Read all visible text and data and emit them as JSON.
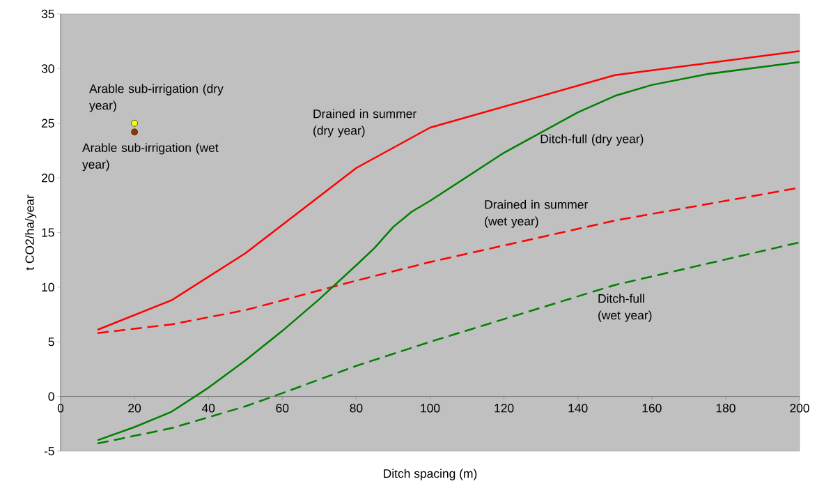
{
  "chart_data": {
    "type": "line",
    "xlabel": "Ditch spacing (m)",
    "ylabel": "t CO2/ha/year",
    "xlim": [
      0,
      200
    ],
    "ylim": [
      -5,
      35
    ],
    "xticks": [
      0,
      20,
      40,
      60,
      80,
      100,
      120,
      140,
      160,
      180,
      200
    ],
    "yticks": [
      -5,
      0,
      5,
      10,
      15,
      20,
      25,
      30,
      35
    ],
    "series": [
      {
        "name": "Drained in summer (dry year)",
        "line_style": "solid",
        "color": "#ff0000",
        "x": [
          10,
          30,
          50,
          80,
          100,
          150,
          200
        ],
        "values": [
          6.1,
          8.8,
          13.1,
          20.9,
          24.6,
          29.4,
          31.6
        ]
      },
      {
        "name": "Drained in summer (wet year)",
        "line_style": "dashed",
        "color": "#ff0000",
        "x": [
          10,
          30,
          50,
          80,
          100,
          150,
          200
        ],
        "values": [
          5.8,
          6.6,
          7.9,
          10.6,
          12.3,
          16.1,
          19.1
        ]
      },
      {
        "name": "Ditch-full (dry year)",
        "line_style": "solid",
        "color": "#008000",
        "x": [
          10,
          20,
          30,
          40,
          50,
          60,
          70,
          80,
          85,
          90,
          95,
          100,
          120,
          140,
          150,
          160,
          175,
          200
        ],
        "values": [
          -4.0,
          -2.8,
          -1.4,
          0.8,
          3.3,
          6.0,
          8.9,
          12.0,
          13.6,
          15.5,
          16.9,
          17.9,
          22.3,
          26.0,
          27.5,
          28.5,
          29.5,
          30.6
        ]
      },
      {
        "name": "Ditch-full (wet year)",
        "line_style": "dashed",
        "color": "#008000",
        "x": [
          10,
          30,
          50,
          60,
          80,
          100,
          150,
          200
        ],
        "values": [
          -4.3,
          -2.9,
          -0.9,
          0.3,
          2.8,
          5.0,
          10.2,
          14.1
        ]
      },
      {
        "name": "Arable sub-irrigation (dry year)",
        "type": "scatter",
        "marker": "circle",
        "color": "#ffff00",
        "x": [
          20
        ],
        "values": [
          25.0
        ]
      },
      {
        "name": "Arable sub-irrigation (wet year)",
        "type": "scatter",
        "marker": "circle",
        "color": "#993300",
        "x": [
          20
        ],
        "values": [
          24.2
        ]
      }
    ]
  }
}
